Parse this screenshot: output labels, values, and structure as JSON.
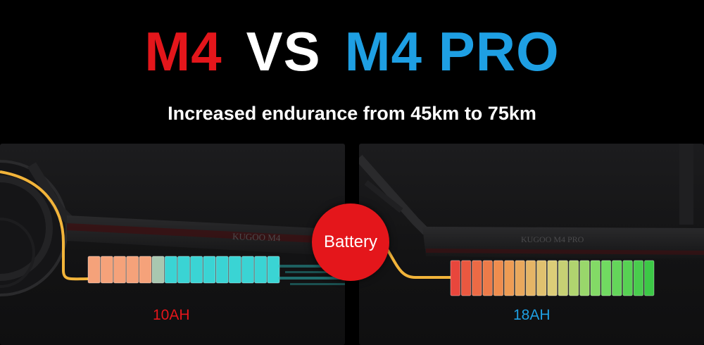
{
  "header": {
    "title_left": "M4",
    "title_vs": "VS",
    "title_right": "M4 PRO",
    "subtitle": "Increased endurance from 45km to 75km"
  },
  "badge": {
    "label": "Battery"
  },
  "left_panel": {
    "capacity": "10AH",
    "deck_logo": "KUGOO M4"
  },
  "right_panel": {
    "capacity": "18AH",
    "deck_logo": "KUGOO M4 PRO"
  },
  "colors": {
    "red": "#e4161b",
    "blue": "#1e9fe3",
    "cyan_cells": "#3ad4d4",
    "orange_cells": "#f5a27a",
    "wire": "#f2b43a"
  }
}
